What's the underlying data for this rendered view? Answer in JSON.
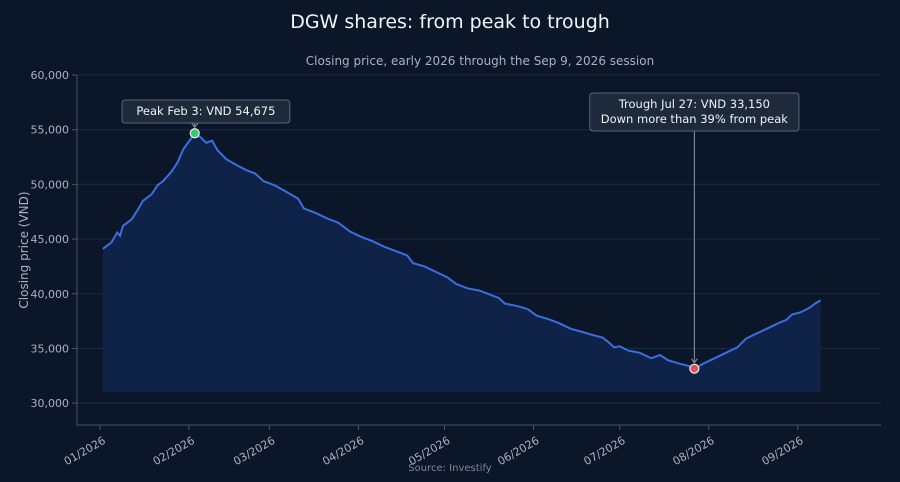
{
  "chart_data": {
    "type": "area",
    "title": "DGW shares: from peak to trough",
    "subtitle": "Closing price, early 2026 through the Sep 9, 2026 session",
    "ylabel": "Closing price (VND)",
    "xlabel": "",
    "source": "Source: Investify",
    "ylim": [
      28000,
      60000
    ],
    "yticks": [
      30000,
      35000,
      40000,
      45000,
      50000,
      55000,
      60000
    ],
    "ytick_labels": [
      "30,000",
      "35,000",
      "40,000",
      "45,000",
      "50,000",
      "55,000",
      "60,000"
    ],
    "xlim": [
      "2025-12-24",
      "2026-09-30"
    ],
    "xticks": [
      "2026-01-01",
      "2026-02-01",
      "2026-03-01",
      "2026-04-01",
      "2026-05-01",
      "2026-06-01",
      "2026-07-01",
      "2026-08-01",
      "2026-09-01"
    ],
    "xtick_labels": [
      "01/2026",
      "02/2026",
      "03/2026",
      "04/2026",
      "05/2026",
      "06/2026",
      "07/2026",
      "08/2026",
      "09/2026"
    ],
    "grid": true,
    "series": [
      {
        "color": "#3b6fe0",
        "fill": "#0f2247",
        "points": [
          [
            "2026-01-02",
            44100
          ],
          [
            "2026-01-05",
            44700
          ],
          [
            "2026-01-07",
            45600
          ],
          [
            "2026-01-08",
            45300
          ],
          [
            "2026-01-09",
            46200
          ],
          [
            "2026-01-12",
            46800
          ],
          [
            "2026-01-14",
            47600
          ],
          [
            "2026-01-16",
            48500
          ],
          [
            "2026-01-19",
            49100
          ],
          [
            "2026-01-21",
            49900
          ],
          [
            "2026-01-23",
            50300
          ],
          [
            "2026-01-26",
            51200
          ],
          [
            "2026-01-28",
            52000
          ],
          [
            "2026-01-30",
            53200
          ],
          [
            "2026-02-02",
            54300
          ],
          [
            "2026-02-03",
            54675
          ],
          [
            "2026-02-05",
            54300
          ],
          [
            "2026-02-07",
            53800
          ],
          [
            "2026-02-09",
            54000
          ],
          [
            "2026-02-11",
            53100
          ],
          [
            "2026-02-14",
            52300
          ],
          [
            "2026-02-18",
            51700
          ],
          [
            "2026-02-21",
            51300
          ],
          [
            "2026-02-24",
            51000
          ],
          [
            "2026-02-27",
            50300
          ],
          [
            "2026-03-03",
            49900
          ],
          [
            "2026-03-07",
            49300
          ],
          [
            "2026-03-11",
            48700
          ],
          [
            "2026-03-13",
            47800
          ],
          [
            "2026-03-17",
            47400
          ],
          [
            "2026-03-21",
            46900
          ],
          [
            "2026-03-25",
            46500
          ],
          [
            "2026-03-29",
            45700
          ],
          [
            "2026-04-02",
            45200
          ],
          [
            "2026-04-06",
            44800
          ],
          [
            "2026-04-10",
            44300
          ],
          [
            "2026-04-14",
            43900
          ],
          [
            "2026-04-18",
            43500
          ],
          [
            "2026-04-20",
            42800
          ],
          [
            "2026-04-24",
            42500
          ],
          [
            "2026-04-28",
            42000
          ],
          [
            "2026-05-02",
            41500
          ],
          [
            "2026-05-05",
            40900
          ],
          [
            "2026-05-09",
            40500
          ],
          [
            "2026-05-13",
            40300
          ],
          [
            "2026-05-17",
            39900
          ],
          [
            "2026-05-20",
            39600
          ],
          [
            "2026-05-22",
            39100
          ],
          [
            "2026-05-26",
            38900
          ],
          [
            "2026-05-30",
            38600
          ],
          [
            "2026-06-02",
            38000
          ],
          [
            "2026-06-06",
            37700
          ],
          [
            "2026-06-10",
            37300
          ],
          [
            "2026-06-14",
            36800
          ],
          [
            "2026-06-18",
            36500
          ],
          [
            "2026-06-22",
            36200
          ],
          [
            "2026-06-25",
            36000
          ],
          [
            "2026-06-27",
            35600
          ],
          [
            "2026-06-29",
            35100
          ],
          [
            "2026-07-01",
            35200
          ],
          [
            "2026-07-04",
            34800
          ],
          [
            "2026-07-08",
            34600
          ],
          [
            "2026-07-12",
            34100
          ],
          [
            "2026-07-15",
            34400
          ],
          [
            "2026-07-18",
            33900
          ],
          [
            "2026-07-22",
            33600
          ],
          [
            "2026-07-25",
            33400
          ],
          [
            "2026-07-27",
            33150
          ],
          [
            "2026-07-30",
            33600
          ],
          [
            "2026-08-03",
            34100
          ],
          [
            "2026-08-07",
            34600
          ],
          [
            "2026-08-11",
            35100
          ],
          [
            "2026-08-14",
            35900
          ],
          [
            "2026-08-18",
            36400
          ],
          [
            "2026-08-22",
            36900
          ],
          [
            "2026-08-26",
            37400
          ],
          [
            "2026-08-28",
            37600
          ],
          [
            "2026-08-30",
            38100
          ],
          [
            "2026-09-02",
            38300
          ],
          [
            "2026-09-05",
            38700
          ],
          [
            "2026-09-07",
            39100
          ],
          [
            "2026-09-09",
            39400
          ]
        ]
      }
    ],
    "annotations": [
      {
        "lines": [
          "Peak Feb 3: VND 54,675"
        ],
        "x": "2026-02-03",
        "y": 54675,
        "marker_color": "#3ec46d"
      },
      {
        "lines": [
          "Trough Jul 27: VND 33,150",
          "Down more than 39% from peak"
        ],
        "x": "2026-07-27",
        "y": 33150,
        "marker_color": "#e05252"
      }
    ]
  }
}
